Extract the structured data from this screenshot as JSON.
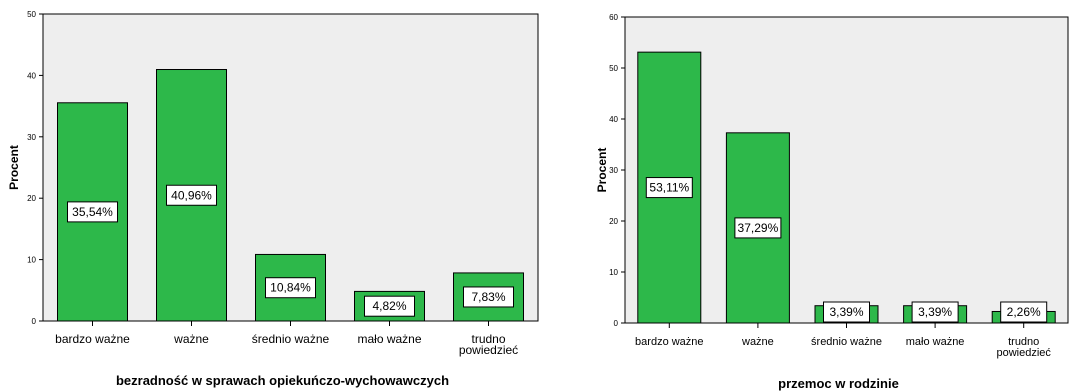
{
  "chart_data": [
    {
      "type": "bar",
      "categories": [
        "bardzo ważne",
        "ważne",
        "średnio ważne",
        "mało ważne",
        "trudno powiedzieć"
      ],
      "values": [
        35.54,
        40.96,
        10.84,
        4.82,
        7.83
      ],
      "data_labels": [
        "35,54%",
        "40,96%",
        "10,84%",
        "4,82%",
        "7,83%"
      ],
      "title": "",
      "xlabel": "bezradność w sprawach opiekuńczo-wychowawczych",
      "ylabel": "Procent",
      "ylim": [
        0,
        50
      ],
      "yticks": [
        0,
        10,
        20,
        30,
        40,
        50
      ],
      "ytick_labels": [
        "0",
        "10",
        "20",
        "30",
        "40",
        "50"
      ],
      "grid": false,
      "legend": "none",
      "bar_color": "#2db84a",
      "plot_background": "#eeeeee"
    },
    {
      "type": "bar",
      "categories": [
        "bardzo ważne",
        "ważne",
        "średnio ważne",
        "mało ważne",
        "trudno powiedzieć"
      ],
      "values": [
        53.11,
        37.29,
        3.39,
        3.39,
        2.26
      ],
      "data_labels": [
        "53,11%",
        "37,29%",
        "3,39%",
        "3,39%",
        "2,26%"
      ],
      "title": "",
      "xlabel": "przemoc w rodzinie",
      "ylabel": "Procent",
      "ylim": [
        0,
        60
      ],
      "yticks": [
        0,
        10,
        20,
        30,
        40,
        50,
        60
      ],
      "ytick_labels": [
        "0",
        "10",
        "20",
        "30",
        "40",
        "50",
        "60"
      ],
      "grid": false,
      "legend": "none",
      "bar_color": "#2db84a",
      "plot_background": "#eeeeee"
    }
  ]
}
